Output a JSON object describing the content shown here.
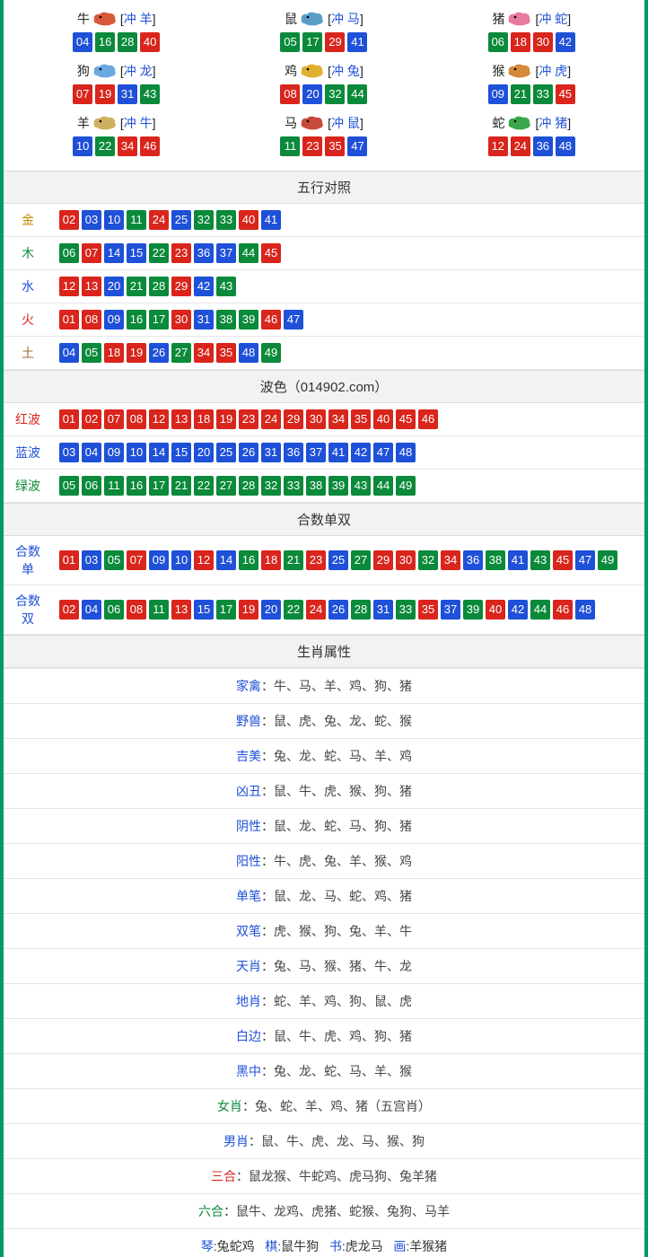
{
  "colors": {
    "red": "#d9251c",
    "blue": "#1e50d8",
    "green": "#0a8a3a",
    "border": "#009966",
    "header_bg": "#f2f2f2",
    "border_row": "#e6e6e6"
  },
  "zodiacs": [
    {
      "name": "牛",
      "conflict": "冲 羊",
      "animal_color": "#d85a3a",
      "numbers": [
        {
          "v": "04",
          "c": "blue"
        },
        {
          "v": "16",
          "c": "green"
        },
        {
          "v": "28",
          "c": "green"
        },
        {
          "v": "40",
          "c": "red"
        }
      ]
    },
    {
      "name": "鼠",
      "conflict": "冲 马",
      "animal_color": "#5a9ec7",
      "numbers": [
        {
          "v": "05",
          "c": "green"
        },
        {
          "v": "17",
          "c": "green"
        },
        {
          "v": "29",
          "c": "red"
        },
        {
          "v": "41",
          "c": "blue"
        }
      ]
    },
    {
      "name": "猪",
      "conflict": "冲 蛇",
      "animal_color": "#e87aa0",
      "numbers": [
        {
          "v": "06",
          "c": "green"
        },
        {
          "v": "18",
          "c": "red"
        },
        {
          "v": "30",
          "c": "red"
        },
        {
          "v": "42",
          "c": "blue"
        }
      ]
    },
    {
      "name": "狗",
      "conflict": "冲 龙",
      "animal_color": "#6aa8e0",
      "numbers": [
        {
          "v": "07",
          "c": "red"
        },
        {
          "v": "19",
          "c": "red"
        },
        {
          "v": "31",
          "c": "blue"
        },
        {
          "v": "43",
          "c": "green"
        }
      ]
    },
    {
      "name": "鸡",
      "conflict": "冲 兔",
      "animal_color": "#e0b030",
      "numbers": [
        {
          "v": "08",
          "c": "red"
        },
        {
          "v": "20",
          "c": "blue"
        },
        {
          "v": "32",
          "c": "green"
        },
        {
          "v": "44",
          "c": "green"
        }
      ]
    },
    {
      "name": "猴",
      "conflict": "冲 虎",
      "animal_color": "#d48a3a",
      "numbers": [
        {
          "v": "09",
          "c": "blue"
        },
        {
          "v": "21",
          "c": "green"
        },
        {
          "v": "33",
          "c": "green"
        },
        {
          "v": "45",
          "c": "red"
        }
      ]
    },
    {
      "name": "羊",
      "conflict": "冲 牛",
      "animal_color": "#d0b060",
      "numbers": [
        {
          "v": "10",
          "c": "blue"
        },
        {
          "v": "22",
          "c": "green"
        },
        {
          "v": "34",
          "c": "red"
        },
        {
          "v": "46",
          "c": "red"
        }
      ]
    },
    {
      "name": "马",
      "conflict": "冲 鼠",
      "animal_color": "#c84a3a",
      "numbers": [
        {
          "v": "11",
          "c": "green"
        },
        {
          "v": "23",
          "c": "red"
        },
        {
          "v": "35",
          "c": "red"
        },
        {
          "v": "47",
          "c": "blue"
        }
      ]
    },
    {
      "name": "蛇",
      "conflict": "冲 猪",
      "animal_color": "#3aa84a",
      "numbers": [
        {
          "v": "12",
          "c": "red"
        },
        {
          "v": "24",
          "c": "red"
        },
        {
          "v": "36",
          "c": "blue"
        },
        {
          "v": "48",
          "c": "blue"
        }
      ]
    }
  ],
  "wuxing_title": "五行对照",
  "wuxing": [
    {
      "label": "金",
      "label_class": "lbl-gold",
      "numbers": [
        {
          "v": "02",
          "c": "red"
        },
        {
          "v": "03",
          "c": "blue"
        },
        {
          "v": "10",
          "c": "blue"
        },
        {
          "v": "11",
          "c": "green"
        },
        {
          "v": "24",
          "c": "red"
        },
        {
          "v": "25",
          "c": "blue"
        },
        {
          "v": "32",
          "c": "green"
        },
        {
          "v": "33",
          "c": "green"
        },
        {
          "v": "40",
          "c": "red"
        },
        {
          "v": "41",
          "c": "blue"
        }
      ]
    },
    {
      "label": "木",
      "label_class": "lbl-wood",
      "numbers": [
        {
          "v": "06",
          "c": "green"
        },
        {
          "v": "07",
          "c": "red"
        },
        {
          "v": "14",
          "c": "blue"
        },
        {
          "v": "15",
          "c": "blue"
        },
        {
          "v": "22",
          "c": "green"
        },
        {
          "v": "23",
          "c": "red"
        },
        {
          "v": "36",
          "c": "blue"
        },
        {
          "v": "37",
          "c": "blue"
        },
        {
          "v": "44",
          "c": "green"
        },
        {
          "v": "45",
          "c": "red"
        }
      ]
    },
    {
      "label": "水",
      "label_class": "lbl-water",
      "numbers": [
        {
          "v": "12",
          "c": "red"
        },
        {
          "v": "13",
          "c": "red"
        },
        {
          "v": "20",
          "c": "blue"
        },
        {
          "v": "21",
          "c": "green"
        },
        {
          "v": "28",
          "c": "green"
        },
        {
          "v": "29",
          "c": "red"
        },
        {
          "v": "42",
          "c": "blue"
        },
        {
          "v": "43",
          "c": "green"
        }
      ]
    },
    {
      "label": "火",
      "label_class": "lbl-fire",
      "numbers": [
        {
          "v": "01",
          "c": "red"
        },
        {
          "v": "08",
          "c": "red"
        },
        {
          "v": "09",
          "c": "blue"
        },
        {
          "v": "16",
          "c": "green"
        },
        {
          "v": "17",
          "c": "green"
        },
        {
          "v": "30",
          "c": "red"
        },
        {
          "v": "31",
          "c": "blue"
        },
        {
          "v": "38",
          "c": "green"
        },
        {
          "v": "39",
          "c": "green"
        },
        {
          "v": "46",
          "c": "red"
        },
        {
          "v": "47",
          "c": "blue"
        }
      ]
    },
    {
      "label": "土",
      "label_class": "lbl-earth",
      "numbers": [
        {
          "v": "04",
          "c": "blue"
        },
        {
          "v": "05",
          "c": "green"
        },
        {
          "v": "18",
          "c": "red"
        },
        {
          "v": "19",
          "c": "red"
        },
        {
          "v": "26",
          "c": "blue"
        },
        {
          "v": "27",
          "c": "green"
        },
        {
          "v": "34",
          "c": "red"
        },
        {
          "v": "35",
          "c": "red"
        },
        {
          "v": "48",
          "c": "blue"
        },
        {
          "v": "49",
          "c": "green"
        }
      ]
    }
  ],
  "bose_title": "波色（014902.com）",
  "bose": [
    {
      "label": "红波",
      "label_class": "lbl-red",
      "numbers": [
        {
          "v": "01",
          "c": "red"
        },
        {
          "v": "02",
          "c": "red"
        },
        {
          "v": "07",
          "c": "red"
        },
        {
          "v": "08",
          "c": "red"
        },
        {
          "v": "12",
          "c": "red"
        },
        {
          "v": "13",
          "c": "red"
        },
        {
          "v": "18",
          "c": "red"
        },
        {
          "v": "19",
          "c": "red"
        },
        {
          "v": "23",
          "c": "red"
        },
        {
          "v": "24",
          "c": "red"
        },
        {
          "v": "29",
          "c": "red"
        },
        {
          "v": "30",
          "c": "red"
        },
        {
          "v": "34",
          "c": "red"
        },
        {
          "v": "35",
          "c": "red"
        },
        {
          "v": "40",
          "c": "red"
        },
        {
          "v": "45",
          "c": "red"
        },
        {
          "v": "46",
          "c": "red"
        }
      ]
    },
    {
      "label": "蓝波",
      "label_class": "lbl-blue",
      "numbers": [
        {
          "v": "03",
          "c": "blue"
        },
        {
          "v": "04",
          "c": "blue"
        },
        {
          "v": "09",
          "c": "blue"
        },
        {
          "v": "10",
          "c": "blue"
        },
        {
          "v": "14",
          "c": "blue"
        },
        {
          "v": "15",
          "c": "blue"
        },
        {
          "v": "20",
          "c": "blue"
        },
        {
          "v": "25",
          "c": "blue"
        },
        {
          "v": "26",
          "c": "blue"
        },
        {
          "v": "31",
          "c": "blue"
        },
        {
          "v": "36",
          "c": "blue"
        },
        {
          "v": "37",
          "c": "blue"
        },
        {
          "v": "41",
          "c": "blue"
        },
        {
          "v": "42",
          "c": "blue"
        },
        {
          "v": "47",
          "c": "blue"
        },
        {
          "v": "48",
          "c": "blue"
        }
      ]
    },
    {
      "label": "绿波",
      "label_class": "lbl-green",
      "numbers": [
        {
          "v": "05",
          "c": "green"
        },
        {
          "v": "06",
          "c": "green"
        },
        {
          "v": "11",
          "c": "green"
        },
        {
          "v": "16",
          "c": "green"
        },
        {
          "v": "17",
          "c": "green"
        },
        {
          "v": "21",
          "c": "green"
        },
        {
          "v": "22",
          "c": "green"
        },
        {
          "v": "27",
          "c": "green"
        },
        {
          "v": "28",
          "c": "green"
        },
        {
          "v": "32",
          "c": "green"
        },
        {
          "v": "33",
          "c": "green"
        },
        {
          "v": "38",
          "c": "green"
        },
        {
          "v": "39",
          "c": "green"
        },
        {
          "v": "43",
          "c": "green"
        },
        {
          "v": "44",
          "c": "green"
        },
        {
          "v": "49",
          "c": "green"
        }
      ]
    }
  ],
  "heshudanshuang_title": "合数单双",
  "heshudanshuang": [
    {
      "label": "合数单",
      "label_class": "lbl-blue",
      "numbers": [
        {
          "v": "01",
          "c": "red"
        },
        {
          "v": "03",
          "c": "blue"
        },
        {
          "v": "05",
          "c": "green"
        },
        {
          "v": "07",
          "c": "red"
        },
        {
          "v": "09",
          "c": "blue"
        },
        {
          "v": "10",
          "c": "blue"
        },
        {
          "v": "12",
          "c": "red"
        },
        {
          "v": "14",
          "c": "blue"
        },
        {
          "v": "16",
          "c": "green"
        },
        {
          "v": "18",
          "c": "red"
        },
        {
          "v": "21",
          "c": "green"
        },
        {
          "v": "23",
          "c": "red"
        },
        {
          "v": "25",
          "c": "blue"
        },
        {
          "v": "27",
          "c": "green"
        },
        {
          "v": "29",
          "c": "red"
        },
        {
          "v": "30",
          "c": "red"
        },
        {
          "v": "32",
          "c": "green"
        },
        {
          "v": "34",
          "c": "red"
        },
        {
          "v": "36",
          "c": "blue"
        },
        {
          "v": "38",
          "c": "green"
        },
        {
          "v": "41",
          "c": "blue"
        },
        {
          "v": "43",
          "c": "green"
        },
        {
          "v": "45",
          "c": "red"
        },
        {
          "v": "47",
          "c": "blue"
        },
        {
          "v": "49",
          "c": "green"
        }
      ]
    },
    {
      "label": "合数双",
      "label_class": "lbl-blue",
      "numbers": [
        {
          "v": "02",
          "c": "red"
        },
        {
          "v": "04",
          "c": "blue"
        },
        {
          "v": "06",
          "c": "green"
        },
        {
          "v": "08",
          "c": "red"
        },
        {
          "v": "11",
          "c": "green"
        },
        {
          "v": "13",
          "c": "red"
        },
        {
          "v": "15",
          "c": "blue"
        },
        {
          "v": "17",
          "c": "green"
        },
        {
          "v": "19",
          "c": "red"
        },
        {
          "v": "20",
          "c": "blue"
        },
        {
          "v": "22",
          "c": "green"
        },
        {
          "v": "24",
          "c": "red"
        },
        {
          "v": "26",
          "c": "blue"
        },
        {
          "v": "28",
          "c": "green"
        },
        {
          "v": "31",
          "c": "blue"
        },
        {
          "v": "33",
          "c": "green"
        },
        {
          "v": "35",
          "c": "red"
        },
        {
          "v": "37",
          "c": "blue"
        },
        {
          "v": "39",
          "c": "green"
        },
        {
          "v": "40",
          "c": "red"
        },
        {
          "v": "42",
          "c": "blue"
        },
        {
          "v": "44",
          "c": "green"
        },
        {
          "v": "46",
          "c": "red"
        },
        {
          "v": "48",
          "c": "blue"
        }
      ]
    }
  ],
  "shengxiao_title": "生肖属性",
  "attrs": [
    {
      "key": "家禽",
      "key_class": "attr-key",
      "value": "牛、马、羊、鸡、狗、猪"
    },
    {
      "key": "野兽",
      "key_class": "attr-key",
      "value": "鼠、虎、兔、龙、蛇、猴"
    },
    {
      "key": "吉美",
      "key_class": "attr-key",
      "value": "兔、龙、蛇、马、羊、鸡"
    },
    {
      "key": "凶丑",
      "key_class": "attr-key",
      "value": "鼠、牛、虎、猴、狗、猪"
    },
    {
      "key": "阴性",
      "key_class": "attr-key",
      "value": "鼠、龙、蛇、马、狗、猪"
    },
    {
      "key": "阳性",
      "key_class": "attr-key",
      "value": "牛、虎、兔、羊、猴、鸡"
    },
    {
      "key": "单笔",
      "key_class": "attr-key",
      "value": "鼠、龙、马、蛇、鸡、猪"
    },
    {
      "key": "双笔",
      "key_class": "attr-key",
      "value": "虎、猴、狗、兔、羊、牛"
    },
    {
      "key": "天肖",
      "key_class": "attr-key",
      "value": "兔、马、猴、猪、牛、龙"
    },
    {
      "key": "地肖",
      "key_class": "attr-key",
      "value": "蛇、羊、鸡、狗、鼠、虎"
    },
    {
      "key": "白边",
      "key_class": "attr-key",
      "value": "鼠、牛、虎、鸡、狗、猪"
    },
    {
      "key": "黑中",
      "key_class": "attr-key",
      "value": "兔、龙、蛇、马、羊、猴"
    },
    {
      "key": "女肖",
      "key_class": "attr-green",
      "value": "兔、蛇、羊、鸡、猪（五宫肖）"
    },
    {
      "key": "男肖",
      "key_class": "attr-key",
      "value": "鼠、牛、虎、龙、马、猴、狗"
    },
    {
      "key": "三合",
      "key_class": "attr-red",
      "value": "鼠龙猴、牛蛇鸡、虎马狗、兔羊猪"
    },
    {
      "key": "六合",
      "key_class": "attr-green",
      "value": "鼠牛、龙鸡、虎猪、蛇猴、兔狗、马羊"
    }
  ],
  "bottom": [
    {
      "key": "琴",
      "value": "兔蛇鸡"
    },
    {
      "key": "棋",
      "value": "鼠牛狗"
    },
    {
      "key": "书",
      "value": "虎龙马"
    },
    {
      "key": "画",
      "value": "羊猴猪"
    }
  ]
}
